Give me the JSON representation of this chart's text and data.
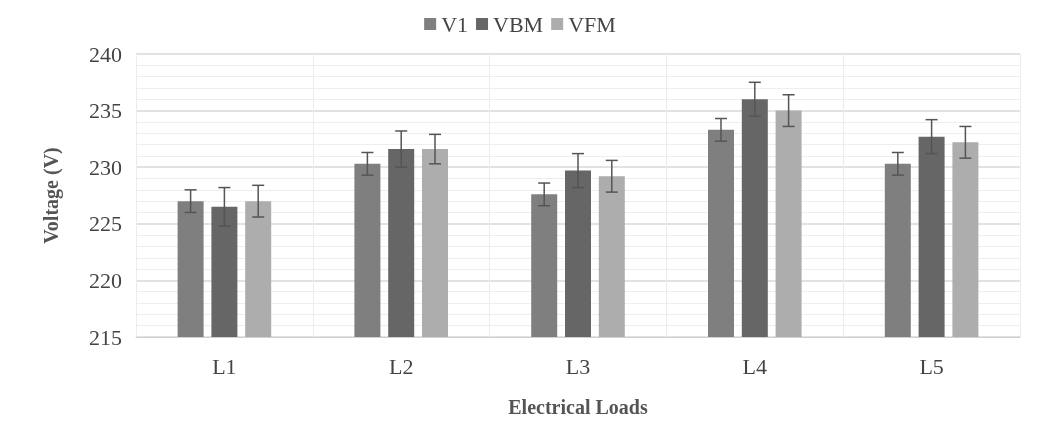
{
  "chart_data": {
    "type": "bar",
    "xlabel": "Electrical Loads",
    "ylabel": "Voltage (V)",
    "categories": [
      "L1",
      "L2",
      "L3",
      "L4",
      "L5"
    ],
    "series": [
      {
        "name": "V1",
        "color": "#7f7f7f",
        "values": [
          227.0,
          230.3,
          227.6,
          233.3,
          230.3
        ],
        "errors": [
          1.0,
          1.0,
          1.0,
          1.0,
          1.0
        ]
      },
      {
        "name": "VBM",
        "color": "#666666",
        "values": [
          226.5,
          231.6,
          229.7,
          236.0,
          232.7
        ],
        "errors": [
          1.7,
          1.6,
          1.5,
          1.5,
          1.5
        ]
      },
      {
        "name": "VFM",
        "color": "#adadad",
        "values": [
          227.0,
          231.6,
          229.2,
          235.0,
          232.2
        ],
        "errors": [
          1.4,
          1.3,
          1.4,
          1.4,
          1.4
        ]
      }
    ],
    "ylim": [
      215,
      240
    ],
    "yticks": [
      215,
      220,
      225,
      230,
      235,
      240
    ],
    "grid": true,
    "legend": "top"
  }
}
